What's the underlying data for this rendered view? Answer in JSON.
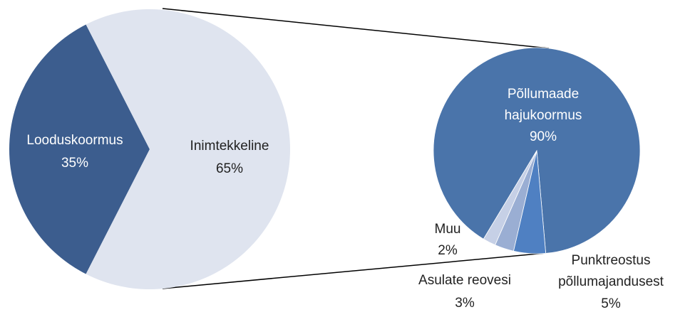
{
  "chart_data": [
    {
      "type": "pie",
      "categories": [
        "Looduskoormus",
        "Inimtekkeline"
      ],
      "values": [
        35,
        65
      ],
      "value_labels": [
        "35%",
        "65%"
      ],
      "colors": [
        "#3c5d8e",
        "#dfe4ef"
      ]
    },
    {
      "type": "pie",
      "categories": [
        "Põllumaade\nhajukoormus",
        "Punktreostus\npõllumajandusest",
        "Asulate reovesi",
        "Muu"
      ],
      "values": [
        90,
        5,
        3,
        2
      ],
      "value_labels": [
        "90%",
        "5%",
        "3%",
        "2%"
      ],
      "colors": [
        "#4a74aa",
        "#4f80c2",
        "#9aaed3",
        "#c6d0e6"
      ]
    }
  ]
}
